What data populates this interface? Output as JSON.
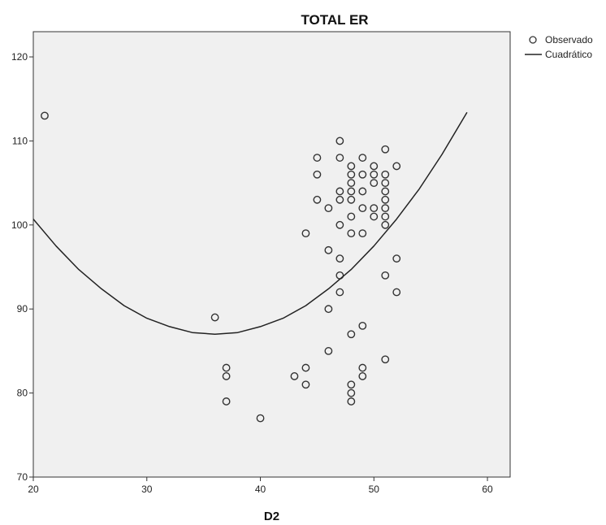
{
  "chart_data": {
    "type": "scatter",
    "title": "TOTAL ER",
    "xlabel": "D2",
    "ylabel": "",
    "xlim": [
      20,
      62
    ],
    "ylim": [
      70,
      123
    ],
    "xticks": [
      20,
      30,
      40,
      50,
      60
    ],
    "yticks": [
      70,
      80,
      90,
      100,
      110,
      120
    ],
    "grid": false,
    "legend_position": "top-right",
    "background_color": "#f0f0f0",
    "series": [
      {
        "name": "Observado",
        "kind": "points",
        "marker": "open-circle",
        "color": "#333333",
        "points": [
          [
            21,
            113
          ],
          [
            36,
            89
          ],
          [
            37,
            83
          ],
          [
            37,
            82
          ],
          [
            37,
            79
          ],
          [
            40,
            77
          ],
          [
            43,
            82
          ],
          [
            44,
            99
          ],
          [
            44,
            83
          ],
          [
            44,
            81
          ],
          [
            45,
            108
          ],
          [
            45,
            106
          ],
          [
            45,
            103
          ],
          [
            46,
            102
          ],
          [
            46,
            97
          ],
          [
            46,
            90
          ],
          [
            46,
            85
          ],
          [
            47,
            110
          ],
          [
            47,
            108
          ],
          [
            47,
            104
          ],
          [
            47,
            103
          ],
          [
            47,
            100
          ],
          [
            47,
            96
          ],
          [
            47,
            94
          ],
          [
            47,
            92
          ],
          [
            48,
            107
          ],
          [
            48,
            106
          ],
          [
            48,
            105
          ],
          [
            48,
            104
          ],
          [
            48,
            103
          ],
          [
            48,
            101
          ],
          [
            48,
            99
          ],
          [
            48,
            87
          ],
          [
            48,
            81
          ],
          [
            48,
            80
          ],
          [
            48,
            79
          ],
          [
            49,
            108
          ],
          [
            49,
            106
          ],
          [
            49,
            104
          ],
          [
            49,
            102
          ],
          [
            49,
            99
          ],
          [
            49,
            88
          ],
          [
            49,
            83
          ],
          [
            49,
            82
          ],
          [
            50,
            107
          ],
          [
            50,
            106
          ],
          [
            50,
            105
          ],
          [
            50,
            102
          ],
          [
            50,
            101
          ],
          [
            51,
            109
          ],
          [
            51,
            106
          ],
          [
            51,
            105
          ],
          [
            51,
            104
          ],
          [
            51,
            103
          ],
          [
            51,
            102
          ],
          [
            51,
            101
          ],
          [
            51,
            100
          ],
          [
            51,
            94
          ],
          [
            51,
            84
          ],
          [
            52,
            107
          ],
          [
            52,
            96
          ],
          [
            52,
            92
          ]
        ]
      },
      {
        "name": "Cuadrático",
        "kind": "curve",
        "color": "#222222",
        "equation": "y = 0.0535*(x-36)^2 + 87",
        "x": [
          20,
          22,
          24,
          26,
          28,
          30,
          32,
          34,
          36,
          38,
          40,
          42,
          44,
          46,
          48,
          50,
          52,
          54,
          56,
          58.2
        ],
        "y": [
          100.7,
          97.5,
          94.7,
          92.4,
          90.4,
          88.9,
          87.9,
          87.2,
          87.0,
          87.2,
          87.9,
          88.9,
          90.4,
          92.4,
          94.7,
          97.5,
          100.7,
          104.3,
          108.4,
          113.4
        ]
      }
    ]
  }
}
